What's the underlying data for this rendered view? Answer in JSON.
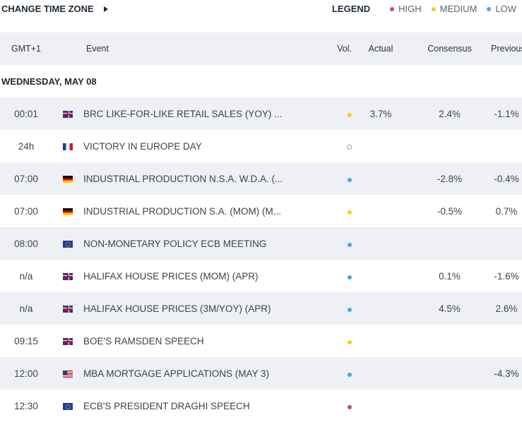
{
  "header": {
    "change_tz_label": "CHANGE TIME ZONE",
    "legend_title": "LEGEND",
    "legend": [
      {
        "label": "HIGH",
        "color": "#c94a55"
      },
      {
        "label": "MEDIUM",
        "color": "#f2cf1d"
      },
      {
        "label": "LOW",
        "color": "#3eaadf"
      }
    ]
  },
  "columns": {
    "time": "GMT+1",
    "event": "Event",
    "vol": "Vol.",
    "actual": "Actual",
    "consensus": "Consensus",
    "previous": "Previous"
  },
  "day_label": "WEDNESDAY, MAY 08",
  "rows": [
    {
      "time": "00:01",
      "flag": "gb",
      "flag_icon": "uk-flag-icon",
      "event": "BRC LIKE-FOR-LIKE RETAIL SALES (YOY) ...",
      "vol": "medium",
      "actual": "3.7%",
      "consensus": "2.4%",
      "previous": "-1.1%"
    },
    {
      "time": "24h",
      "flag": "fr",
      "flag_icon": "france-flag-icon",
      "event": "VICTORY IN EUROPE DAY",
      "vol": "none",
      "actual": "",
      "consensus": "",
      "previous": ""
    },
    {
      "time": "07:00",
      "flag": "de",
      "flag_icon": "germany-flag-icon",
      "event": "INDUSTRIAL PRODUCTION N.S.A. W.D.A. (...",
      "vol": "low",
      "actual": "",
      "consensus": "-2.8%",
      "previous": "-0.4%"
    },
    {
      "time": "07:00",
      "flag": "de",
      "flag_icon": "germany-flag-icon",
      "event": "INDUSTRIAL PRODUCTION S.A. (MOM) (M...",
      "vol": "medium",
      "actual": "",
      "consensus": "-0.5%",
      "previous": "0.7%"
    },
    {
      "time": "08:00",
      "flag": "eu",
      "flag_icon": "eu-flag-icon",
      "event": "NON-MONETARY POLICY ECB MEETING",
      "vol": "low",
      "actual": "",
      "consensus": "",
      "previous": ""
    },
    {
      "time": "n/a",
      "flag": "gb",
      "flag_icon": "uk-flag-icon",
      "event": "HALIFAX HOUSE PRICES (MOM) (APR)",
      "vol": "low",
      "actual": "",
      "consensus": "0.1%",
      "previous": "-1.6%"
    },
    {
      "time": "n/a",
      "flag": "gb",
      "flag_icon": "uk-flag-icon",
      "event": "HALIFAX HOUSE PRICES (3M/YOY) (APR)",
      "vol": "low",
      "actual": "",
      "consensus": "4.5%",
      "previous": "2.6%"
    },
    {
      "time": "09:15",
      "flag": "gb",
      "flag_icon": "uk-flag-icon",
      "event": "BOE'S RAMSDEN SPEECH",
      "vol": "medium",
      "actual": "",
      "consensus": "",
      "previous": ""
    },
    {
      "time": "12:00",
      "flag": "us",
      "flag_icon": "us-flag-icon",
      "event": "MBA MORTGAGE APPLICATIONS (MAY 3)",
      "vol": "low",
      "actual": "",
      "consensus": "",
      "previous": "-4.3%"
    },
    {
      "time": "12:30",
      "flag": "eu",
      "flag_icon": "eu-flag-icon",
      "event": "ECB'S PRESIDENT DRAGHI SPEECH",
      "vol": "high",
      "actual": "",
      "consensus": "",
      "previous": ""
    }
  ]
}
